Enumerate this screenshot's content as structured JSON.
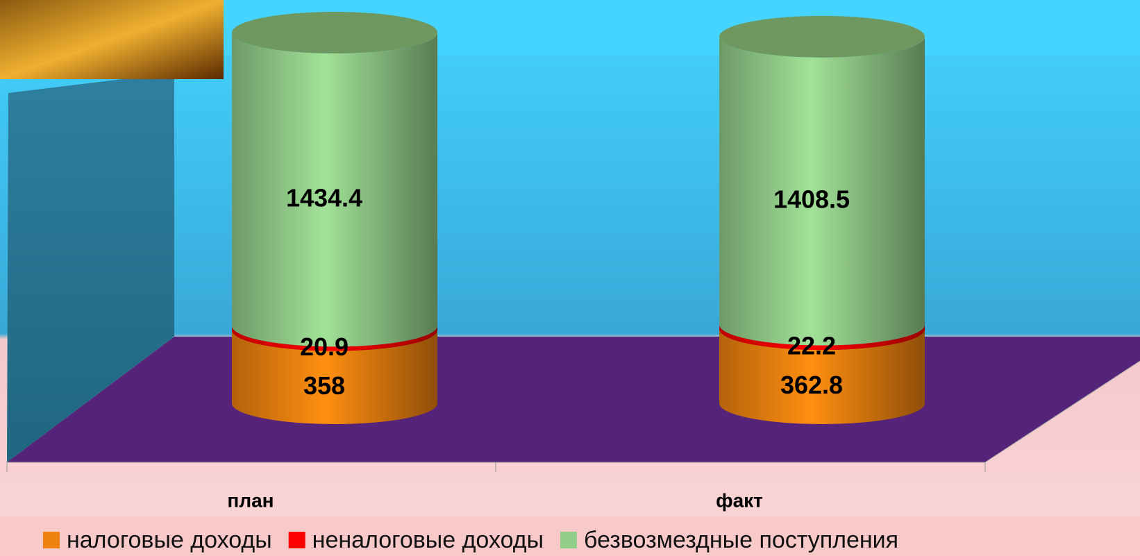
{
  "chart_data": {
    "type": "bar3d-stacked",
    "categories": [
      "план",
      "факт"
    ],
    "series": [
      {
        "name": "налоговые доходы",
        "color": "#f0820f",
        "values": [
          358,
          362.8
        ]
      },
      {
        "name": "неналоговые доходы",
        "color": "#ff0000",
        "values": [
          20.9,
          22.2
        ]
      },
      {
        "name": "безвозмездные поступления",
        "color": "#93cd8a",
        "values": [
          1434.4,
          1408.5
        ]
      }
    ]
  }
}
